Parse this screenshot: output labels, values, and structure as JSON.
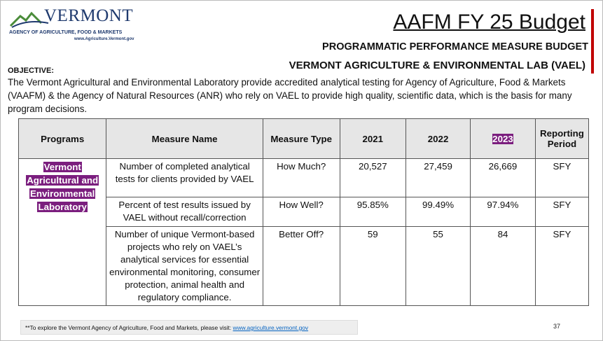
{
  "header": {
    "logo_name": "VERMONT",
    "logo_agency": "AGENCY OF AGRICULTURE, FOOD & MARKETS",
    "logo_url": "www.Agriculture.Vermont.gov",
    "title": "AAFM FY 25 Budget",
    "subtitle": "PROGRAMMATIC PERFORMANCE MEASURE BUDGET",
    "section_title": "VERMONT AGRICULTURE & ENVIRONMENTAL LAB (VAEL)"
  },
  "objective": {
    "label": "OBJECTIVE:",
    "text": "The Vermont Agricultural and Environmental Laboratory provide accredited analytical testing for Agency of Agriculture, Food & Markets (VAAFM) & the Agency of Natural Resources (ANR) who rely on VAEL to provide high quality, scientific data, which is the basis for many program decisions."
  },
  "table": {
    "columns": [
      "Programs",
      "Measure Name",
      "Measure Type",
      "2021",
      "2022",
      "2023",
      "Reporting Period"
    ],
    "program": "Vermont Agricultural and Environmental Laboratory",
    "rows": [
      [
        "Number of completed analytical tests for clients provided by VAEL",
        "How Much?",
        "20,527",
        "27,459",
        "26,669",
        "SFY"
      ],
      [
        "Percent of test results issued by VAEL without recall/correction",
        "How Well?",
        "95.85%",
        "99.49%",
        "97.94%",
        "SFY"
      ],
      [
        "Number of unique Vermont-based projects who rely on VAEL’s analytical services for essential environmental monitoring, consumer protection, animal health and regulatory compliance.",
        "Better Off?",
        "59",
        "55",
        "84",
        "SFY"
      ]
    ]
  },
  "footer": {
    "text": "**To explore the Vermont Agency of Agriculture, Food and Markets, please visit: ",
    "link": "www.agriculture.vermont.gov",
    "page_number": "37"
  }
}
